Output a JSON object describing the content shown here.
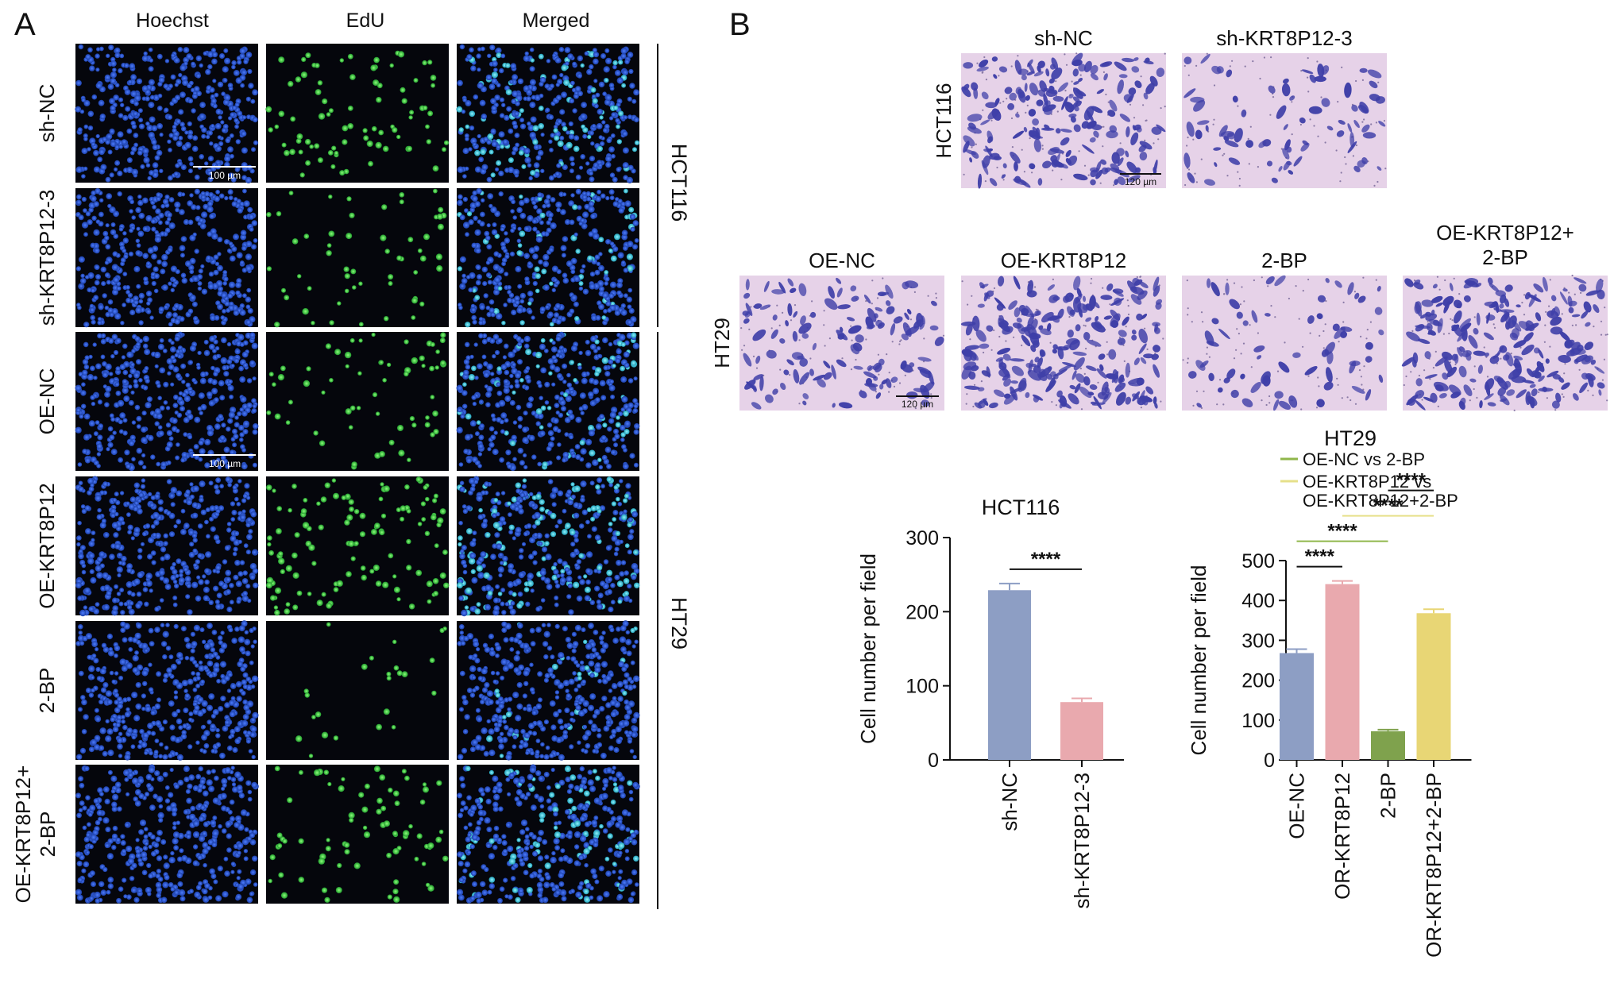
{
  "panel_a": {
    "letter": "A",
    "columns": [
      "Hoechst",
      "EdU",
      "Merged"
    ],
    "rows": [
      {
        "lines": [
          "sh-NC"
        ],
        "seed": 11,
        "edu_level": 0.55
      },
      {
        "lines": [
          "sh-KRT8P12-3"
        ],
        "seed": 23,
        "edu_level": 0.35
      },
      {
        "lines": [
          "OE-NC"
        ],
        "seed": 37,
        "edu_level": 0.45
      },
      {
        "lines": [
          "OE-KRT8P12"
        ],
        "seed": 41,
        "edu_level": 0.75
      },
      {
        "lines": [
          "2-BP"
        ],
        "seed": 53,
        "edu_level": 0.2
      },
      {
        "lines": [
          "OE-KRT8P12+",
          "2-BP"
        ],
        "seed": 67,
        "edu_level": 0.5
      }
    ],
    "groups": [
      "HCT116",
      "HT29"
    ],
    "scale_bar": "100 µm",
    "colors": {
      "nuclei": "#2f5fd6",
      "edu": "#39d24a",
      "background": "#05060c"
    }
  },
  "panel_b": {
    "letter": "B",
    "hct116_images": {
      "row_label": "HCT116",
      "titles": [
        "sh-NC",
        "sh-KRT8P12-3"
      ],
      "density": [
        0.75,
        0.3
      ],
      "scale_bar": "120 µm"
    },
    "ht29_images": {
      "row_label": "HT29",
      "titles": [
        [
          "OE-NC"
        ],
        [
          "OE-KRT8P12"
        ],
        [
          "2-BP"
        ],
        [
          "OE-KRT8P12+",
          "2-BP"
        ]
      ],
      "density": [
        0.5,
        0.9,
        0.25,
        0.8
      ],
      "scale_bar": "120 µm"
    },
    "colors": {
      "stain_bg": "#e6d2e8",
      "stain_cell": "#3f3fa8"
    }
  },
  "chart_data": [
    {
      "type": "bar",
      "title": "HCT116",
      "ylabel": "Cell number per field",
      "xlabel": "",
      "categories": [
        "sh-NC",
        "sh-KRT8P12-3"
      ],
      "values": [
        229,
        78
      ],
      "errors": [
        9,
        5
      ],
      "colors": [
        "#8d9ec4",
        "#e9a9ae"
      ],
      "ylim": [
        0,
        300
      ],
      "yticks": [
        0,
        100,
        200,
        300
      ],
      "significance": [
        {
          "from": 0,
          "to": 1,
          "label": "****"
        }
      ]
    },
    {
      "type": "bar",
      "title": "HT29",
      "ylabel": "Cell number per field",
      "xlabel": "",
      "categories": [
        "OE-NC",
        "OR-KRT8P12",
        "2-BP",
        "OR-KRT8P12+2-BP"
      ],
      "values": [
        268,
        441,
        72,
        368
      ],
      "errors": [
        10,
        8,
        4,
        10
      ],
      "colors": [
        "#8d9ec4",
        "#e9a9ae",
        "#7fa24d",
        "#e8d675"
      ],
      "ylim": [
        0,
        500
      ],
      "yticks": [
        0,
        100,
        200,
        300,
        400,
        500
      ],
      "significance": [
        {
          "from": 0,
          "to": 1,
          "label": "****",
          "color": "#111111"
        },
        {
          "from": 0,
          "to": 2,
          "label": "****",
          "color": "#8fb64a"
        },
        {
          "from": 1,
          "to": 3,
          "label": "****",
          "color": "#e6e08a"
        },
        {
          "from": 2,
          "to": 3,
          "label": "****",
          "color": "#111111"
        }
      ],
      "legend": [
        {
          "lines": [
            "OE-NC vs 2-BP"
          ],
          "color": "#8fb64a"
        },
        {
          "lines": [
            "OE-KRT8P12 vs",
            "OE-KRT8P12+2-BP"
          ],
          "color": "#e6e08a"
        }
      ]
    }
  ]
}
